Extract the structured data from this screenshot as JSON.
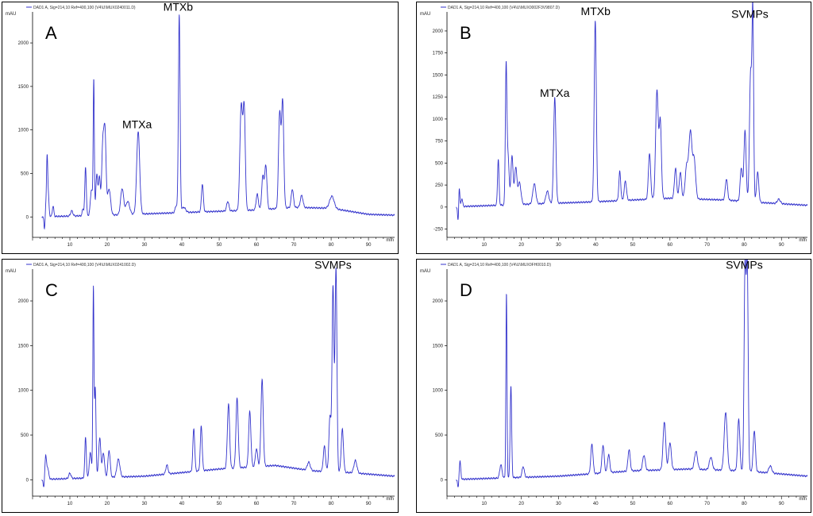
{
  "chart_data": [
    {
      "panel": "A",
      "type": "line",
      "legend_text": "DAD1 A, Sig=214,10 Ref=400,100 (V4\\U\\MUX0240011.D)",
      "y_unit": "mAU",
      "x_unit": "min",
      "xlim": [
        0,
        97
      ],
      "ylim": [
        -180,
        2320
      ],
      "yticks": [
        0,
        500,
        1000,
        1500,
        2000
      ],
      "xticks": [
        10,
        20,
        30,
        40,
        50,
        60,
        70,
        80,
        90
      ],
      "annotations": [
        {
          "text": "MTXa",
          "x": 28,
          "y": 1020
        },
        {
          "text": "MTXb",
          "x": 39,
          "y": 2370
        }
      ],
      "peaks": [
        [
          3.2,
          -150,
          0.15
        ],
        [
          3.6,
          130,
          0.2
        ],
        [
          3.9,
          600,
          0.15
        ],
        [
          4.2,
          250,
          0.2
        ],
        [
          5.5,
          120,
          0.2
        ],
        [
          10.5,
          60,
          0.3
        ],
        [
          13.5,
          80,
          0.2
        ],
        [
          14.2,
          560,
          0.2
        ],
        [
          15.8,
          300,
          0.3
        ],
        [
          16.4,
          1540,
          0.15
        ],
        [
          17.2,
          470,
          0.25
        ],
        [
          17.9,
          440,
          0.25
        ],
        [
          18.8,
          760,
          0.3
        ],
        [
          19.4,
          920,
          0.3
        ],
        [
          20.5,
          300,
          0.4
        ],
        [
          24,
          300,
          0.4
        ],
        [
          25.5,
          150,
          0.5
        ],
        [
          28.3,
          950,
          0.4
        ],
        [
          38.5,
          80,
          0.3
        ],
        [
          39.3,
          2270,
          0.22
        ],
        [
          40.5,
          60,
          0.5
        ],
        [
          45.5,
          320,
          0.25
        ],
        [
          52.3,
          110,
          0.3
        ],
        [
          55.9,
          1200,
          0.35
        ],
        [
          56.7,
          1150,
          0.3
        ],
        [
          60.2,
          180,
          0.3
        ],
        [
          61.7,
          380,
          0.3
        ],
        [
          62.5,
          500,
          0.3
        ],
        [
          66.2,
          1090,
          0.3
        ],
        [
          67,
          1230,
          0.3
        ],
        [
          69.6,
          210,
          0.3
        ],
        [
          72.1,
          140,
          0.35
        ],
        [
          80.2,
          140,
          0.6
        ]
      ],
      "baseline": [
        [
          0,
          0
        ],
        [
          20,
          20
        ],
        [
          40,
          50
        ],
        [
          60,
          80
        ],
        [
          70,
          110
        ],
        [
          80,
          100
        ],
        [
          90,
          30
        ],
        [
          97,
          20
        ]
      ]
    },
    {
      "panel": "B",
      "type": "line",
      "legend_text": "DAD1 A, Sig=214,10 Ref=400,100 (V4\\U\\MUX0002F3V9807.D)",
      "y_unit": "mAU",
      "x_unit": "min",
      "xlim": [
        0,
        97
      ],
      "ylim": [
        -290,
        2180
      ],
      "yticks": [
        -250,
        0,
        250,
        500,
        750,
        1000,
        1250,
        1500,
        1750,
        2000
      ],
      "xticks": [
        10,
        20,
        30,
        40,
        50,
        60,
        70,
        80,
        90
      ],
      "annotations": [
        {
          "text": "MTXa",
          "x": 29,
          "y": 1250
        },
        {
          "text": "MTXb",
          "x": 40,
          "y": 2180
        },
        {
          "text": "SVMPs",
          "x": 81.5,
          "y": 2150
        }
      ],
      "peaks": [
        [
          3.0,
          -180,
          0.15
        ],
        [
          3.3,
          230,
          0.15
        ],
        [
          4,
          90,
          0.2
        ],
        [
          13.8,
          520,
          0.2
        ],
        [
          15.9,
          1480,
          0.2
        ],
        [
          16.4,
          570,
          0.3
        ],
        [
          17.5,
          550,
          0.3
        ],
        [
          18.5,
          420,
          0.3
        ],
        [
          19.5,
          250,
          0.4
        ],
        [
          23.5,
          230,
          0.4
        ],
        [
          27,
          140,
          0.4
        ],
        [
          29,
          1200,
          0.3
        ],
        [
          39.9,
          2060,
          0.28
        ],
        [
          46.5,
          330,
          0.25
        ],
        [
          48,
          220,
          0.3
        ],
        [
          54.5,
          520,
          0.3
        ],
        [
          56.5,
          1230,
          0.35
        ],
        [
          57.4,
          870,
          0.3
        ],
        [
          61.5,
          340,
          0.3
        ],
        [
          62.8,
          300,
          0.3
        ],
        [
          64.5,
          370,
          0.4
        ],
        [
          65.5,
          750,
          0.4
        ],
        [
          66.5,
          450,
          0.4
        ],
        [
          75.2,
          240,
          0.3
        ],
        [
          79.2,
          380,
          0.3
        ],
        [
          80.2,
          800,
          0.3
        ],
        [
          81.7,
          1450,
          0.3
        ],
        [
          82.3,
          2060,
          0.22
        ],
        [
          83.6,
          340,
          0.3
        ],
        [
          89.3,
          50,
          0.4
        ]
      ],
      "baseline": [
        [
          0,
          0
        ],
        [
          20,
          30
        ],
        [
          40,
          60
        ],
        [
          60,
          100
        ],
        [
          75,
          80
        ],
        [
          85,
          50
        ],
        [
          97,
          20
        ]
      ]
    },
    {
      "panel": "C",
      "type": "line",
      "legend_text": "DAD1 A, Sig=214,10 Ref=400,100 (V4\\U\\MUX0241002.D)",
      "y_unit": "mAU",
      "x_unit": "min",
      "xlim": [
        0,
        97
      ],
      "ylim": [
        -130,
        2320
      ],
      "yticks": [
        0,
        500,
        1000,
        1500,
        2000
      ],
      "xticks": [
        10,
        20,
        30,
        40,
        50,
        60,
        70,
        80,
        90
      ],
      "annotations": [
        {
          "text": "SVMPs",
          "x": 80.5,
          "y": 2360
        }
      ],
      "peaks": [
        [
          3,
          -100,
          0.15
        ],
        [
          3.5,
          230,
          0.2
        ],
        [
          4,
          130,
          0.3
        ],
        [
          10,
          60,
          0.3
        ],
        [
          14.2,
          460,
          0.2
        ],
        [
          15.5,
          280,
          0.3
        ],
        [
          16.3,
          2100,
          0.15
        ],
        [
          16.8,
          1000,
          0.2
        ],
        [
          18,
          440,
          0.3
        ],
        [
          19,
          270,
          0.3
        ],
        [
          20.5,
          300,
          0.3
        ],
        [
          23,
          200,
          0.4
        ],
        [
          36,
          100,
          0.3
        ],
        [
          43.2,
          480,
          0.25
        ],
        [
          45.2,
          500,
          0.25
        ],
        [
          52.5,
          720,
          0.3
        ],
        [
          54.8,
          780,
          0.3
        ],
        [
          58.2,
          620,
          0.3
        ],
        [
          60,
          200,
          0.3
        ],
        [
          61.5,
          970,
          0.3
        ],
        [
          74,
          90,
          0.4
        ],
        [
          78.2,
          280,
          0.3
        ],
        [
          79.7,
          620,
          0.3
        ],
        [
          80.5,
          2060,
          0.25
        ],
        [
          81.3,
          2280,
          0.25
        ],
        [
          83,
          480,
          0.3
        ],
        [
          86.5,
          140,
          0.4
        ]
      ],
      "baseline": [
        [
          0,
          0
        ],
        [
          30,
          40
        ],
        [
          50,
          120
        ],
        [
          65,
          160
        ],
        [
          75,
          100
        ],
        [
          85,
          80
        ],
        [
          97,
          40
        ]
      ]
    },
    {
      "panel": "D",
      "type": "line",
      "legend_text": "DAD1 A, Sig=214,10 Ref=400,100 (V4\\U\\MUX0FH0010.D)",
      "y_unit": "mAU",
      "x_unit": "min",
      "xlim": [
        0,
        97
      ],
      "ylim": [
        -130,
        2320
      ],
      "yticks": [
        0,
        500,
        1000,
        1500,
        2000
      ],
      "xticks": [
        10,
        20,
        30,
        40,
        50,
        60,
        70,
        80,
        90
      ],
      "annotations": [
        {
          "text": "SVMPs",
          "x": 80,
          "y": 2360
        }
      ],
      "peaks": [
        [
          3,
          -100,
          0.15
        ],
        [
          3.5,
          200,
          0.2
        ],
        [
          14.5,
          150,
          0.3
        ],
        [
          16,
          2060,
          0.15
        ],
        [
          17.2,
          1030,
          0.2
        ],
        [
          20.5,
          120,
          0.3
        ],
        [
          39,
          330,
          0.3
        ],
        [
          42,
          310,
          0.3
        ],
        [
          43.5,
          200,
          0.3
        ],
        [
          49,
          240,
          0.3
        ],
        [
          53,
          170,
          0.35
        ],
        [
          58.5,
          540,
          0.35
        ],
        [
          60,
          300,
          0.35
        ],
        [
          67,
          200,
          0.4
        ],
        [
          71,
          140,
          0.4
        ],
        [
          75,
          650,
          0.4
        ],
        [
          78.5,
          580,
          0.3
        ],
        [
          80.2,
          2240,
          0.25
        ],
        [
          80.8,
          2280,
          0.25
        ],
        [
          82.7,
          460,
          0.3
        ],
        [
          87,
          80,
          0.4
        ]
      ],
      "baseline": [
        [
          0,
          0
        ],
        [
          30,
          40
        ],
        [
          50,
          100
        ],
        [
          65,
          120
        ],
        [
          80,
          100
        ],
        [
          97,
          40
        ]
      ]
    }
  ]
}
